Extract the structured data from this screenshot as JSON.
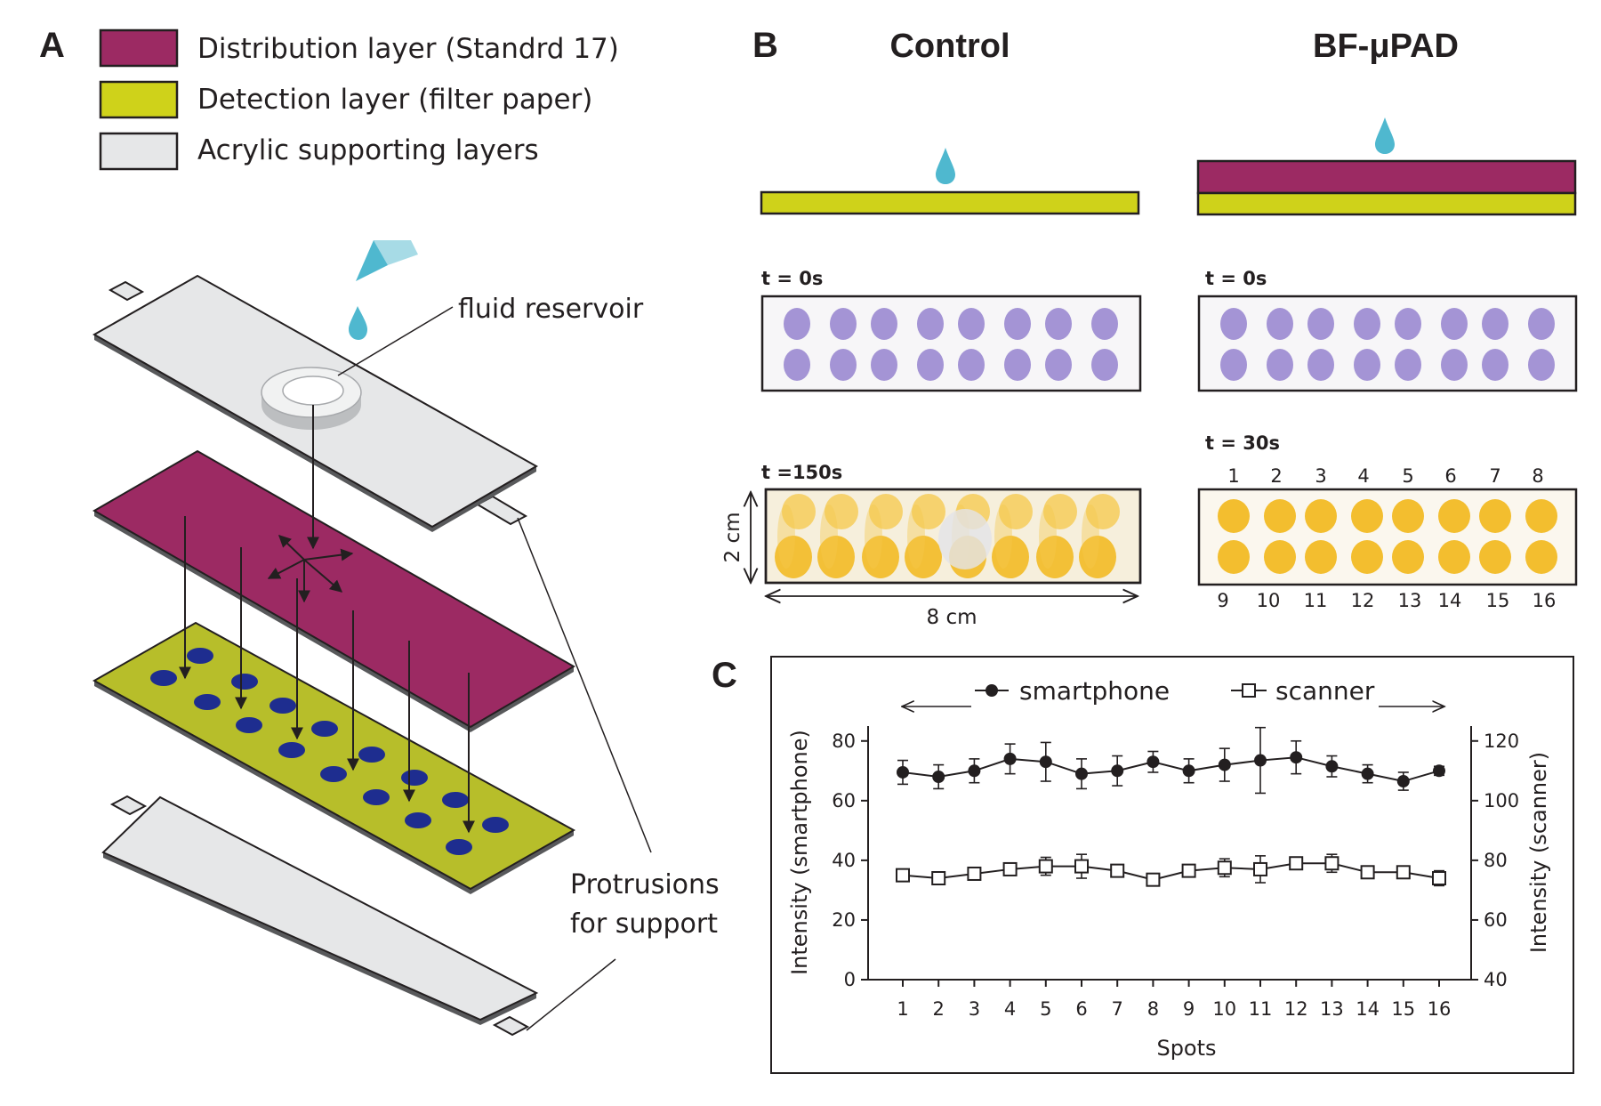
{
  "figure": {
    "panel_a": {
      "letter": "A",
      "legend": [
        {
          "label": "Distribution layer (Standrd 17)",
          "color": "#9c2a63"
        },
        {
          "label": "Detection layer (filter paper)",
          "color": "#cfd21a"
        },
        {
          "label": "Acrylic supporting layers",
          "color": "#e6e7e8"
        }
      ],
      "callout_reservoir": "fluid reservoir",
      "callout_protrusions": [
        "Protrusions",
        "for support"
      ],
      "colors": {
        "detection_spot": "#1e2d8f",
        "droplet": "#4fb8cf",
        "acrylic": "#d1d3d4"
      }
    },
    "panel_b": {
      "letter": "B",
      "control_title": "Control",
      "device_title": "BF-μPAD",
      "control_t0": "t = 0s",
      "control_t1": "t =150s",
      "device_t0": "t = 0s",
      "device_t1": "t = 30s",
      "height_label": "2 cm",
      "width_label": "8 cm",
      "top_numbers": [
        "1",
        "2",
        "3",
        "4",
        "5",
        "6",
        "7",
        "8"
      ],
      "bottom_numbers": [
        "9",
        "10",
        "11",
        "12",
        "13",
        "14",
        "15",
        "16"
      ],
      "colors": {
        "purple_spot": "#9a8ad0",
        "yellow_spot": "#f2b71a",
        "yellow_smear": "#f5c84a"
      }
    },
    "panel_c": {
      "letter": "C"
    }
  },
  "chart_data": {
    "type": "line",
    "x": [
      1,
      2,
      3,
      4,
      5,
      6,
      7,
      8,
      9,
      10,
      11,
      12,
      13,
      14,
      15,
      16
    ],
    "xlabel": "Spots",
    "ylabel_left": "Intensity (smartphone)",
    "ylabel_right": "Intensity (scanner)",
    "ylim_left": [
      0,
      85
    ],
    "ylim_right": [
      40,
      125
    ],
    "yticks_left": [
      "0",
      "20",
      "40",
      "60",
      "80"
    ],
    "yticks_right": [
      "40",
      "60",
      "80",
      "100",
      "120"
    ],
    "xticks": [
      "1",
      "2",
      "3",
      "4",
      "5",
      "6",
      "7",
      "8",
      "9",
      "10",
      "11",
      "12",
      "13",
      "14",
      "15",
      "16"
    ],
    "series": [
      {
        "name": "smartphone",
        "axis": "left",
        "marker": "filled-circle",
        "values": [
          69.5,
          68,
          70,
          74,
          73,
          69,
          70,
          73,
          70,
          72,
          73.5,
          74.5,
          71.5,
          69,
          66.5,
          70
        ],
        "errors": [
          4,
          4,
          4,
          5,
          6.5,
          5,
          5,
          3.5,
          4,
          5.5,
          11,
          5.5,
          3.5,
          3,
          3,
          1.5
        ]
      },
      {
        "name": "scanner",
        "axis": "right",
        "marker": "open-square",
        "values": [
          75,
          74,
          75.5,
          77,
          78,
          78,
          76.5,
          73.5,
          76.5,
          77.5,
          77,
          79,
          79,
          76,
          76,
          74
        ],
        "errors": [
          1.2,
          1,
          2,
          1.5,
          3,
          4,
          1.2,
          1.2,
          1.2,
          3,
          4.5,
          2,
          3,
          1.2,
          1.2,
          2.5
        ]
      }
    ]
  }
}
